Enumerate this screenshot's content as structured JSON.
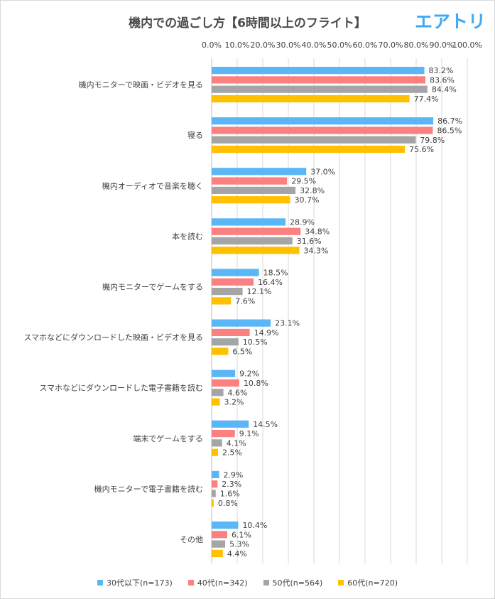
{
  "chart_data": {
    "type": "bar",
    "orientation": "horizontal",
    "title": "機内での過ごし方【6時間以上のフライト】",
    "categories": [
      "機内モニターで映画・ビデオを見る",
      "寝る",
      "機内オーディオで音楽を聴く",
      "本を読む",
      "機内モニターでゲームをする",
      "スマホなどにダウンロードした映画・ビデオを見る",
      "スマホなどにダウンロードした電子書籍を読む",
      "端末でゲームをする",
      "機内モニターで電子書籍を読む",
      "その他"
    ],
    "series": [
      {
        "name": "30代以下(n=173)",
        "color": "#5bb6f5",
        "values": [
          83.2,
          86.7,
          37.0,
          28.9,
          18.5,
          23.1,
          9.2,
          14.5,
          2.9,
          10.4
        ]
      },
      {
        "name": "40代(n=342)",
        "color": "#fb8080",
        "values": [
          83.6,
          86.5,
          29.5,
          34.8,
          16.4,
          14.9,
          10.8,
          9.1,
          2.3,
          6.1
        ]
      },
      {
        "name": "50代(n=564)",
        "color": "#a5a5a5",
        "values": [
          84.4,
          79.8,
          32.8,
          31.6,
          12.1,
          10.5,
          4.6,
          4.1,
          1.6,
          5.3
        ]
      },
      {
        "name": "60代(n=720)",
        "color": "#ffc000",
        "values": [
          77.4,
          75.6,
          30.7,
          34.3,
          7.6,
          6.5,
          3.2,
          2.5,
          0.8,
          4.4
        ]
      }
    ],
    "xlim": [
      0,
      100
    ],
    "xticks": [
      "0.0%",
      "10.0%",
      "20.0%",
      "30.0%",
      "40.0%",
      "50.0%",
      "60.0%",
      "70.0%",
      "80.0%",
      "90.0%",
      "100.0%"
    ],
    "value_suffix": "%",
    "grid": "vertical",
    "legend_position": "bottom"
  },
  "brand": {
    "logo_text": "エアトリ",
    "color": "#3fa9f5"
  }
}
